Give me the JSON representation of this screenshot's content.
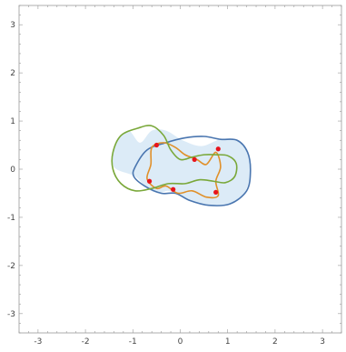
{
  "chart_data": {
    "type": "line",
    "xlim": [
      -3.4,
      3.4
    ],
    "ylim": [
      -3.4,
      3.4
    ],
    "x_ticks": [
      -3,
      -2,
      -1,
      0,
      1,
      2,
      3
    ],
    "y_ticks": [
      -3,
      -2,
      -1,
      0,
      1,
      2,
      3
    ],
    "x_tick_labels": [
      "-3",
      "-2",
      "-1",
      "0",
      "1",
      "2",
      "3"
    ],
    "y_tick_labels": [
      "-3",
      "-2",
      "-1",
      "0",
      "1",
      "2",
      "3"
    ],
    "grid": false,
    "frame": true,
    "region": {
      "fill": "#dcebf7",
      "points": [
        [
          -0.85,
          0.55
        ],
        [
          -0.6,
          0.8
        ],
        [
          -0.3,
          0.8
        ],
        [
          0.05,
          0.6
        ],
        [
          0.45,
          0.48
        ],
        [
          0.85,
          0.62
        ],
        [
          1.2,
          0.6
        ],
        [
          1.45,
          0.3
        ],
        [
          1.48,
          -0.15
        ],
        [
          1.3,
          -0.55
        ],
        [
          0.9,
          -0.75
        ],
        [
          0.4,
          -0.72
        ],
        [
          0.0,
          -0.55
        ],
        [
          -0.25,
          -0.45
        ],
        [
          -0.45,
          -0.5
        ],
        [
          -0.7,
          -0.4
        ],
        [
          -0.95,
          -0.15
        ],
        [
          -1.4,
          0.05
        ],
        [
          -1.38,
          0.5
        ],
        [
          -1.1,
          0.8
        ]
      ]
    },
    "series": [
      {
        "color": "#4a76b0",
        "closed": true,
        "points": [
          [
            -0.95,
            0.05
          ],
          [
            -0.7,
            0.4
          ],
          [
            -0.3,
            0.55
          ],
          [
            0.1,
            0.65
          ],
          [
            0.5,
            0.68
          ],
          [
            0.85,
            0.62
          ],
          [
            1.2,
            0.6
          ],
          [
            1.42,
            0.35
          ],
          [
            1.48,
            -0.05
          ],
          [
            1.4,
            -0.45
          ],
          [
            1.05,
            -0.72
          ],
          [
            0.6,
            -0.75
          ],
          [
            0.2,
            -0.65
          ],
          [
            -0.1,
            -0.5
          ],
          [
            -0.4,
            -0.5
          ],
          [
            -0.75,
            -0.35
          ],
          [
            -0.98,
            -0.15
          ]
        ]
      },
      {
        "color": "#e0902a",
        "closed": true,
        "points": [
          [
            -0.6,
            0.45
          ],
          [
            -0.35,
            0.55
          ],
          [
            -0.1,
            0.45
          ],
          [
            0.1,
            0.3
          ],
          [
            0.35,
            0.2
          ],
          [
            0.55,
            0.1
          ],
          [
            0.75,
            0.35
          ],
          [
            0.85,
            0.05
          ],
          [
            0.75,
            -0.25
          ],
          [
            0.8,
            -0.55
          ],
          [
            0.55,
            -0.58
          ],
          [
            0.25,
            -0.45
          ],
          [
            -0.05,
            -0.5
          ],
          [
            -0.3,
            -0.35
          ],
          [
            -0.5,
            -0.4
          ],
          [
            -0.7,
            -0.2
          ],
          [
            -0.62,
            0.1
          ]
        ]
      },
      {
        "color": "#7aa83a",
        "closed": true,
        "points": [
          [
            -0.9,
            0.85
          ],
          [
            -0.6,
            0.9
          ],
          [
            -0.35,
            0.7
          ],
          [
            -0.2,
            0.4
          ],
          [
            0.0,
            0.2
          ],
          [
            0.25,
            0.25
          ],
          [
            0.5,
            0.3
          ],
          [
            0.75,
            0.3
          ],
          [
            1.0,
            0.28
          ],
          [
            1.18,
            0.12
          ],
          [
            1.15,
            -0.15
          ],
          [
            0.95,
            -0.28
          ],
          [
            0.7,
            -0.25
          ],
          [
            0.4,
            -0.22
          ],
          [
            0.1,
            -0.3
          ],
          [
            -0.25,
            -0.3
          ],
          [
            -0.6,
            -0.4
          ],
          [
            -0.95,
            -0.45
          ],
          [
            -1.25,
            -0.3
          ],
          [
            -1.42,
            0.0
          ],
          [
            -1.42,
            0.35
          ],
          [
            -1.25,
            0.7
          ]
        ]
      }
    ],
    "markers": {
      "color": "#e8141c",
      "points": [
        [
          -0.5,
          0.5
        ],
        [
          0.3,
          0.2
        ],
        [
          0.8,
          0.42
        ],
        [
          -0.65,
          -0.25
        ],
        [
          -0.15,
          -0.42
        ],
        [
          0.75,
          -0.48
        ]
      ]
    }
  }
}
